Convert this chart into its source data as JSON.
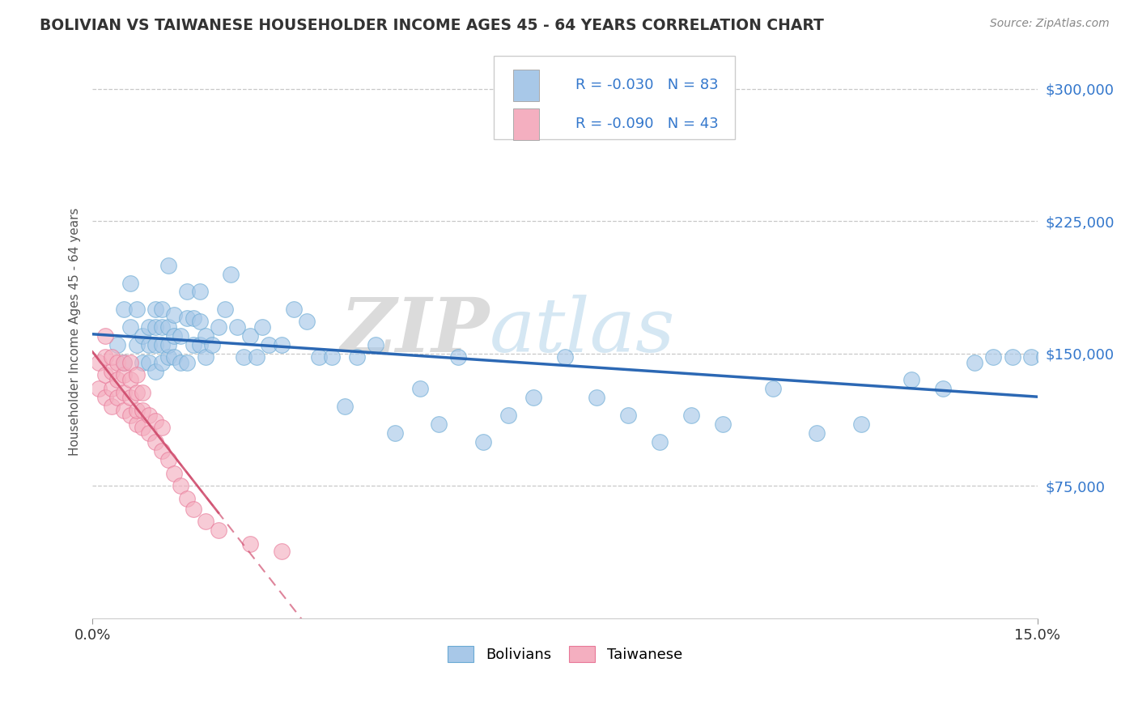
{
  "title": "BOLIVIAN VS TAIWANESE HOUSEHOLDER INCOME AGES 45 - 64 YEARS CORRELATION CHART",
  "source": "Source: ZipAtlas.com",
  "ylabel": "Householder Income Ages 45 - 64 years",
  "xmin": 0.0,
  "xmax": 0.15,
  "ymin": 0,
  "ymax": 325000,
  "yticks": [
    75000,
    150000,
    225000,
    300000
  ],
  "ytick_labels": [
    "$75,000",
    "$150,000",
    "$225,000",
    "$300,000"
  ],
  "xtick_labels": [
    "0.0%",
    "15.0%"
  ],
  "blue_fill": "#a8c8e8",
  "blue_edge": "#6aaad4",
  "pink_fill": "#f4afc0",
  "pink_edge": "#e87898",
  "blue_line_color": "#2060b0",
  "pink_line_color": "#d05070",
  "watermark_zip": "ZIP",
  "watermark_atlas": "atlas",
  "bolivians_x": [
    0.004,
    0.005,
    0.005,
    0.006,
    0.006,
    0.007,
    0.007,
    0.008,
    0.008,
    0.009,
    0.009,
    0.009,
    0.01,
    0.01,
    0.01,
    0.01,
    0.011,
    0.011,
    0.011,
    0.011,
    0.012,
    0.012,
    0.012,
    0.012,
    0.013,
    0.013,
    0.013,
    0.014,
    0.014,
    0.015,
    0.015,
    0.015,
    0.016,
    0.016,
    0.017,
    0.017,
    0.017,
    0.018,
    0.018,
    0.019,
    0.02,
    0.021,
    0.022,
    0.023,
    0.024,
    0.025,
    0.026,
    0.027,
    0.028,
    0.03,
    0.032,
    0.034,
    0.036,
    0.038,
    0.04,
    0.042,
    0.045,
    0.048,
    0.052,
    0.055,
    0.058,
    0.062,
    0.066,
    0.07,
    0.075,
    0.08,
    0.085,
    0.09,
    0.095,
    0.1,
    0.108,
    0.115,
    0.122,
    0.13,
    0.135,
    0.14,
    0.143,
    0.146,
    0.149,
    0.151,
    0.152,
    0.153,
    0.154
  ],
  "bolivians_y": [
    155000,
    145000,
    175000,
    165000,
    190000,
    155000,
    175000,
    145000,
    160000,
    145000,
    155000,
    165000,
    140000,
    155000,
    165000,
    175000,
    145000,
    155000,
    165000,
    175000,
    148000,
    155000,
    165000,
    200000,
    148000,
    160000,
    172000,
    145000,
    160000,
    145000,
    170000,
    185000,
    155000,
    170000,
    155000,
    168000,
    185000,
    148000,
    160000,
    155000,
    165000,
    175000,
    195000,
    165000,
    148000,
    160000,
    148000,
    165000,
    155000,
    155000,
    175000,
    168000,
    148000,
    148000,
    120000,
    148000,
    155000,
    105000,
    130000,
    110000,
    148000,
    100000,
    115000,
    125000,
    148000,
    125000,
    115000,
    100000,
    115000,
    110000,
    130000,
    105000,
    110000,
    135000,
    130000,
    145000,
    148000,
    148000,
    148000,
    148000,
    148000,
    148000,
    148000
  ],
  "taiwanese_x": [
    0.001,
    0.001,
    0.002,
    0.002,
    0.002,
    0.002,
    0.003,
    0.003,
    0.003,
    0.003,
    0.004,
    0.004,
    0.004,
    0.005,
    0.005,
    0.005,
    0.005,
    0.006,
    0.006,
    0.006,
    0.006,
    0.007,
    0.007,
    0.007,
    0.007,
    0.008,
    0.008,
    0.008,
    0.009,
    0.009,
    0.01,
    0.01,
    0.011,
    0.011,
    0.012,
    0.013,
    0.014,
    0.015,
    0.016,
    0.018,
    0.02,
    0.025,
    0.03
  ],
  "taiwanese_y": [
    130000,
    145000,
    125000,
    138000,
    148000,
    160000,
    120000,
    130000,
    140000,
    148000,
    125000,
    135000,
    145000,
    118000,
    128000,
    138000,
    145000,
    115000,
    125000,
    135000,
    145000,
    110000,
    118000,
    128000,
    138000,
    108000,
    118000,
    128000,
    105000,
    115000,
    100000,
    112000,
    95000,
    108000,
    90000,
    82000,
    75000,
    68000,
    62000,
    55000,
    50000,
    42000,
    38000
  ]
}
